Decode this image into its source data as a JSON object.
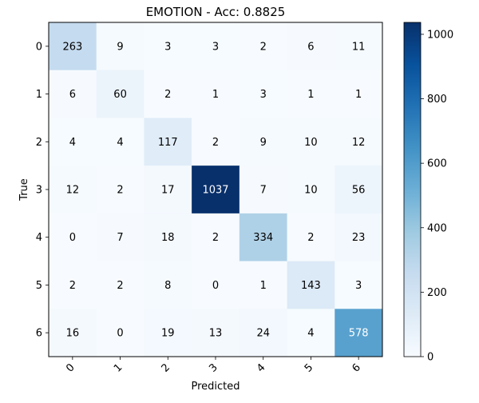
{
  "chart_data": {
    "type": "heatmap",
    "title": "EMOTION - Acc: 0.8825",
    "xlabel": "Predicted",
    "ylabel": "True",
    "x_categories": [
      "0",
      "1",
      "2",
      "3",
      "4",
      "5",
      "6"
    ],
    "y_categories": [
      "0",
      "1",
      "2",
      "3",
      "4",
      "5",
      "6"
    ],
    "matrix": [
      [
        263,
        9,
        3,
        3,
        2,
        6,
        11
      ],
      [
        6,
        60,
        2,
        1,
        3,
        1,
        1
      ],
      [
        4,
        4,
        117,
        2,
        9,
        10,
        12
      ],
      [
        12,
        2,
        17,
        1037,
        7,
        10,
        56
      ],
      [
        0,
        7,
        18,
        2,
        334,
        2,
        23
      ],
      [
        2,
        2,
        8,
        0,
        1,
        143,
        3
      ],
      [
        16,
        0,
        19,
        13,
        24,
        4,
        578
      ]
    ],
    "colormap": "Blues",
    "vmin": 0,
    "vmax": 1037,
    "colorbar_ticks": [
      0,
      200,
      400,
      600,
      800,
      1000
    ],
    "grid": false
  }
}
